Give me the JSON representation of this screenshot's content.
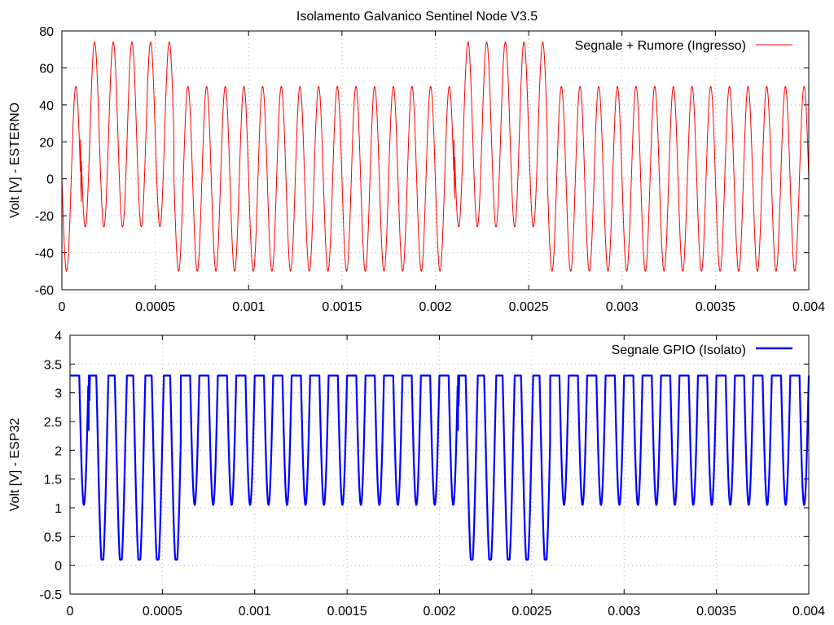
{
  "chart_data": [
    {
      "type": "line",
      "title": "Isolamento Galvanico Sentinel Node V3.5",
      "xlabel": "",
      "ylabel": "Volt [V] - ESTERNO",
      "xlim": [
        0,
        0.004
      ],
      "ylim": [
        -60,
        80
      ],
      "xticks": [
        "0",
        "0.0005",
        "0.001",
        "0.0015",
        "0.002",
        "0.0025",
        "0.003",
        "0.0035",
        "0.004"
      ],
      "yticks": [
        "-60",
        "-40",
        "-20",
        "0",
        "20",
        "40",
        "60",
        "80"
      ],
      "grid": true,
      "legend_position": "top-right",
      "series": [
        {
          "name": "Segnale + Rumore (Ingresso)",
          "color": "#ff0000",
          "signal": {
            "frequency_hz": 10000,
            "amplitude_v": 50,
            "phase": "inverted sine",
            "burst_offset_v": 24,
            "burst_windows_s": [
              [
                0.0001,
                0.0006
              ],
              [
                0.0021,
                0.0026
              ]
            ],
            "spikes": [
              {
                "t": 0.0001,
                "v": 21
              },
              {
                "t": 0.0021,
                "v": 21
              }
            ]
          }
        }
      ]
    },
    {
      "type": "line",
      "title": "",
      "xlabel": "",
      "ylabel": "Volt [V] - ESP32",
      "xlim": [
        0,
        0.004
      ],
      "ylim": [
        -0.5,
        4
      ],
      "xticks": [
        "0",
        "0.0005",
        "0.001",
        "0.0015",
        "0.002",
        "0.0025",
        "0.003",
        "0.0035",
        "0.004"
      ],
      "yticks": [
        "-0.5",
        "0",
        "0.5",
        "1",
        "1.5",
        "2",
        "2.5",
        "3",
        "3.5",
        "4"
      ],
      "grid": true,
      "legend_position": "top-right",
      "series": [
        {
          "name": "Segnale GPIO (Isolato)",
          "color": "#0000ff",
          "signal": {
            "high_level_v": 3.3,
            "normal_min_v": 1.05,
            "burst_min_v": 0.1,
            "glitch_min_v": 2.4
          }
        }
      ]
    }
  ]
}
